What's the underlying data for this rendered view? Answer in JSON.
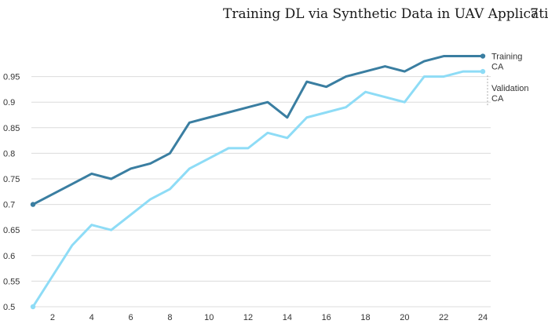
{
  "page_header": {
    "title": "Training DL via Synthetic Data in UAV Applications",
    "page_number": "7"
  },
  "chart_data": {
    "type": "line",
    "title": "",
    "xlabel": "",
    "ylabel": "",
    "x": [
      1,
      2,
      3,
      4,
      5,
      6,
      7,
      8,
      9,
      10,
      11,
      12,
      13,
      14,
      15,
      16,
      17,
      18,
      19,
      20,
      21,
      22,
      23,
      24
    ],
    "xticks": [
      "2",
      "4",
      "6",
      "8",
      "10",
      "12",
      "14",
      "16",
      "18",
      "20",
      "22",
      "24"
    ],
    "xlim": [
      1,
      24
    ],
    "yticks": [
      "0.5",
      "0.55",
      "0.6",
      "0.65",
      "0.7",
      "0.75",
      "0.8",
      "0.85",
      "0.9",
      "0.95"
    ],
    "ylim": [
      0.5,
      1.0
    ],
    "grid": "horizontal",
    "series": [
      {
        "name": "Training CA",
        "label_lines": [
          "Training",
          "CA"
        ],
        "color": "#3a7ea1",
        "values": [
          0.7,
          0.72,
          0.74,
          0.76,
          0.75,
          0.77,
          0.78,
          0.8,
          0.86,
          0.87,
          0.88,
          0.89,
          0.9,
          0.87,
          0.94,
          0.93,
          0.95,
          0.96,
          0.97,
          0.96,
          0.98,
          0.99,
          0.99,
          0.99
        ]
      },
      {
        "name": "Validation CA",
        "label_lines": [
          "Validation",
          "CA"
        ],
        "color": "#8edcf6",
        "values": [
          0.5,
          0.56,
          0.62,
          0.66,
          0.65,
          0.68,
          0.71,
          0.73,
          0.77,
          0.79,
          0.81,
          0.81,
          0.84,
          0.83,
          0.87,
          0.88,
          0.89,
          0.92,
          0.91,
          0.9,
          0.95,
          0.95,
          0.96,
          0.96
        ]
      }
    ]
  }
}
